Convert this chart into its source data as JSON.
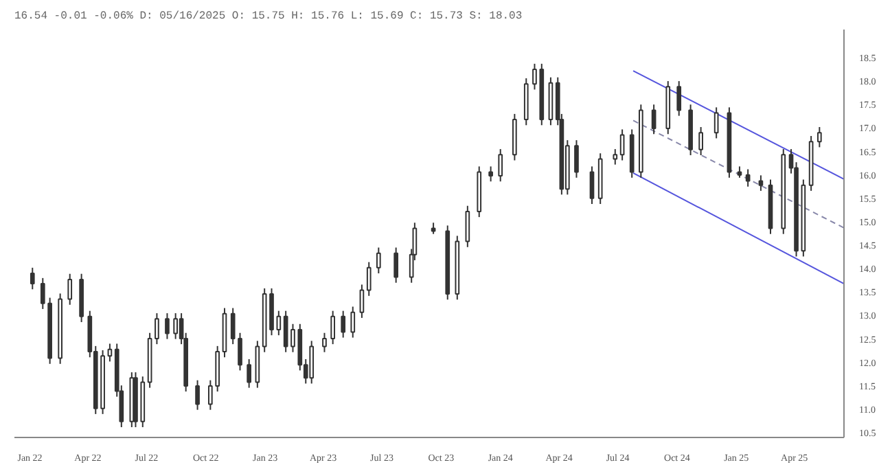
{
  "chart_data": {
    "type": "candlestick",
    "title": "16.54 -0.01 -0.06% D: 05/16/2025 O: 15.75 H: 15.76 L: 15.69 C: 15.73 S: 18.03",
    "color": "#333333",
    "x": [
      "2022-01-05",
      "2022-01-21",
      "2022-02-01",
      "2022-02-17",
      "2022-03-04",
      "2022-03-22",
      "2022-04-04",
      "2022-04-13",
      "2022-04-24",
      "2022-05-05",
      "2022-05-16",
      "2022-05-23",
      "2022-06-08",
      "2022-06-14",
      "2022-06-25",
      "2022-07-06",
      "2022-07-17",
      "2022-08-02",
      "2022-08-15",
      "2022-08-24",
      "2022-08-31",
      "2022-09-18",
      "2022-10-08",
      "2022-10-19",
      "2022-10-30",
      "2022-11-12",
      "2022-11-23",
      "2022-12-07",
      "2022-12-20",
      "2022-12-31",
      "2023-01-11",
      "2023-01-22",
      "2023-02-02",
      "2023-02-13",
      "2023-02-24",
      "2023-03-05",
      "2023-03-14",
      "2023-04-03",
      "2023-04-16",
      "2023-05-02",
      "2023-05-17",
      "2023-05-31",
      "2023-06-11",
      "2023-06-26",
      "2023-07-23",
      "2023-08-16",
      "2023-08-21",
      "2023-09-19",
      "2023-10-11",
      "2023-10-26",
      "2023-11-11",
      "2023-11-29",
      "2023-12-17",
      "2024-01-01",
      "2024-01-23",
      "2024-02-10",
      "2024-02-23",
      "2024-03-05",
      "2024-03-19",
      "2024-03-30",
      "2024-04-05",
      "2024-04-14",
      "2024-04-28",
      "2024-05-22",
      "2024-06-04",
      "2024-06-27",
      "2024-07-08",
      "2024-07-23",
      "2024-08-06",
      "2024-08-26",
      "2024-09-17",
      "2024-10-04",
      "2024-10-22",
      "2024-11-07",
      "2024-12-01",
      "2024-12-21",
      "2025-01-06",
      "2025-01-19",
      "2025-02-08",
      "2025-02-23",
      "2025-03-15",
      "2025-03-27",
      "2025-04-04",
      "2025-04-15",
      "2025-04-27",
      "2025-05-10"
    ],
    "ohlc": [
      [
        13.9,
        14.02,
        13.56,
        13.68
      ],
      [
        13.68,
        13.8,
        13.14,
        13.26
      ],
      [
        13.26,
        13.38,
        11.97,
        12.09
      ],
      [
        12.09,
        13.47,
        11.97,
        13.35
      ],
      [
        13.35,
        13.89,
        13.23,
        13.77
      ],
      [
        13.77,
        13.89,
        12.86,
        12.98
      ],
      [
        12.98,
        13.1,
        12.11,
        12.23
      ],
      [
        12.23,
        12.35,
        10.9,
        11.02
      ],
      [
        11.02,
        12.26,
        10.9,
        12.14
      ],
      [
        12.14,
        12.4,
        12.02,
        12.28
      ],
      [
        12.28,
        12.4,
        11.27,
        11.39
      ],
      [
        11.39,
        11.51,
        10.62,
        10.74
      ],
      [
        10.74,
        11.79,
        10.62,
        11.67
      ],
      [
        11.67,
        11.79,
        10.62,
        10.74
      ],
      [
        10.74,
        11.7,
        10.62,
        11.58
      ],
      [
        11.58,
        12.63,
        11.46,
        12.51
      ],
      [
        12.51,
        13.05,
        12.39,
        12.93
      ],
      [
        12.93,
        13.05,
        12.5,
        12.62
      ],
      [
        12.62,
        13.05,
        12.5,
        12.93
      ],
      [
        12.93,
        13.05,
        12.39,
        12.51
      ],
      [
        12.51,
        12.63,
        11.38,
        11.5
      ],
      [
        11.5,
        11.62,
        10.99,
        11.11
      ],
      [
        11.11,
        11.62,
        10.99,
        11.5
      ],
      [
        11.5,
        12.35,
        11.38,
        12.23
      ],
      [
        12.23,
        13.16,
        12.11,
        13.04
      ],
      [
        13.04,
        13.16,
        12.39,
        12.51
      ],
      [
        12.51,
        12.63,
        11.83,
        11.95
      ],
      [
        11.95,
        12.07,
        11.46,
        11.58
      ],
      [
        11.58,
        12.46,
        11.46,
        12.34
      ],
      [
        12.34,
        13.58,
        12.22,
        13.46
      ],
      [
        13.46,
        13.58,
        12.58,
        12.7
      ],
      [
        12.7,
        13.1,
        12.58,
        12.98
      ],
      [
        12.98,
        13.1,
        12.22,
        12.34
      ],
      [
        12.34,
        12.82,
        12.22,
        12.7
      ],
      [
        12.7,
        12.82,
        11.83,
        11.95
      ],
      [
        11.95,
        12.07,
        11.55,
        11.67
      ],
      [
        11.67,
        12.46,
        11.55,
        12.34
      ],
      [
        12.34,
        12.63,
        12.22,
        12.51
      ],
      [
        12.51,
        13.1,
        12.39,
        12.98
      ],
      [
        12.98,
        13.1,
        12.53,
        12.65
      ],
      [
        12.65,
        13.19,
        12.53,
        13.07
      ],
      [
        13.07,
        13.66,
        12.95,
        13.54
      ],
      [
        13.54,
        14.14,
        13.42,
        14.02
      ],
      [
        14.02,
        14.45,
        13.9,
        14.33
      ],
      [
        14.33,
        14.45,
        13.7,
        13.82
      ],
      [
        13.82,
        14.42,
        13.7,
        14.3
      ],
      [
        14.3,
        14.98,
        14.18,
        14.86
      ],
      [
        14.86,
        14.98,
        14.74,
        14.8
      ],
      [
        14.8,
        14.92,
        13.34,
        13.46
      ],
      [
        13.46,
        14.7,
        13.34,
        14.58
      ],
      [
        14.58,
        15.34,
        14.46,
        15.22
      ],
      [
        15.22,
        16.18,
        15.1,
        16.06
      ],
      [
        16.06,
        16.18,
        15.86,
        15.98
      ],
      [
        15.98,
        16.55,
        15.86,
        16.43
      ],
      [
        16.43,
        17.3,
        16.31,
        17.18
      ],
      [
        17.18,
        18.06,
        17.06,
        17.94
      ],
      [
        17.94,
        18.37,
        17.82,
        18.25
      ],
      [
        18.25,
        18.37,
        17.06,
        17.18
      ],
      [
        17.18,
        18.08,
        17.06,
        17.96
      ],
      [
        17.96,
        18.08,
        17.06,
        17.18
      ],
      [
        17.18,
        17.3,
        15.58,
        15.7
      ],
      [
        15.7,
        16.74,
        15.58,
        16.62
      ],
      [
        16.62,
        16.74,
        15.94,
        16.06
      ],
      [
        16.06,
        16.18,
        15.38,
        15.5
      ],
      [
        15.5,
        16.46,
        15.38,
        16.34
      ],
      [
        16.34,
        16.55,
        16.22,
        16.43
      ],
      [
        16.43,
        16.97,
        16.31,
        16.85
      ],
      [
        16.85,
        16.97,
        15.94,
        16.06
      ],
      [
        16.06,
        17.5,
        15.94,
        17.38
      ],
      [
        17.38,
        17.5,
        16.87,
        16.99
      ],
      [
        16.99,
        18.0,
        16.87,
        17.88
      ],
      [
        17.88,
        18.0,
        17.26,
        17.38
      ],
      [
        17.38,
        17.5,
        16.42,
        16.54
      ],
      [
        16.54,
        17.02,
        16.42,
        16.9
      ],
      [
        16.9,
        17.44,
        16.78,
        17.32
      ],
      [
        17.32,
        17.44,
        15.94,
        16.06
      ],
      [
        16.06,
        16.18,
        15.94,
        16.0
      ],
      [
        16.0,
        16.12,
        15.75,
        15.87
      ],
      [
        15.87,
        15.99,
        15.66,
        15.78
      ],
      [
        15.78,
        15.9,
        14.74,
        14.86
      ],
      [
        14.86,
        16.55,
        14.74,
        16.43
      ],
      [
        16.43,
        16.55,
        16.03,
        16.15
      ],
      [
        16.15,
        16.27,
        14.26,
        14.38
      ],
      [
        14.38,
        15.9,
        14.26,
        15.78
      ],
      [
        15.78,
        16.83,
        15.66,
        16.71
      ],
      [
        16.71,
        17.02,
        16.59,
        16.9
      ]
    ],
    "series": [
      {
        "type": "line",
        "color": "#5555dd",
        "x": [
          "2024-07-25",
          "2025-06-17"
        ],
        "values": [
          18.22,
          15.91
        ]
      },
      {
        "type": "line",
        "color": "#8888aa",
        "line_style": "dashed",
        "x": [
          "2024-07-25",
          "2025-06-17"
        ],
        "values": [
          17.16,
          14.87
        ]
      },
      {
        "type": "line",
        "color": "#5555dd",
        "x": [
          "2024-07-25",
          "2025-06-17"
        ],
        "values": [
          16.04,
          13.68
        ]
      }
    ],
    "xlim": [
      "2021-12-08",
      "2025-06-17"
    ],
    "ylim": [
      10.4,
      19.1
    ],
    "xticks": [
      {
        "value": "2022-01-01",
        "label": "Jan 22"
      },
      {
        "value": "2022-04-01",
        "label": "Apr 22"
      },
      {
        "value": "2022-07-01",
        "label": "Jul 22"
      },
      {
        "value": "2022-10-01",
        "label": "Oct 22"
      },
      {
        "value": "2023-01-01",
        "label": "Jan 23"
      },
      {
        "value": "2023-04-01",
        "label": "Apr 23"
      },
      {
        "value": "2023-07-01",
        "label": "Jul 23"
      },
      {
        "value": "2023-10-01",
        "label": "Oct 23"
      },
      {
        "value": "2024-01-01",
        "label": "Jan 24"
      },
      {
        "value": "2024-04-01",
        "label": "Apr 24"
      },
      {
        "value": "2024-07-01",
        "label": "Jul 24"
      },
      {
        "value": "2024-10-01",
        "label": "Oct 24"
      },
      {
        "value": "2025-01-01",
        "label": "Jan 25"
      },
      {
        "value": "2025-04-01",
        "label": "Apr 25"
      }
    ],
    "yticks": [
      10.5,
      {
        "value": 11,
        "label": "11.0"
      },
      11.5,
      {
        "value": 12,
        "label": "12.0"
      },
      12.5,
      {
        "value": 13,
        "label": "13.0"
      },
      13.5,
      {
        "value": 14,
        "label": "14.0"
      },
      14.5,
      {
        "value": 15,
        "label": "15.0"
      },
      15.5,
      {
        "value": 16,
        "label": "16.0"
      },
      16.5,
      {
        "value": 17,
        "label": "17.0"
      },
      17.5,
      {
        "value": 18,
        "label": "18.0"
      },
      18.5
    ]
  }
}
